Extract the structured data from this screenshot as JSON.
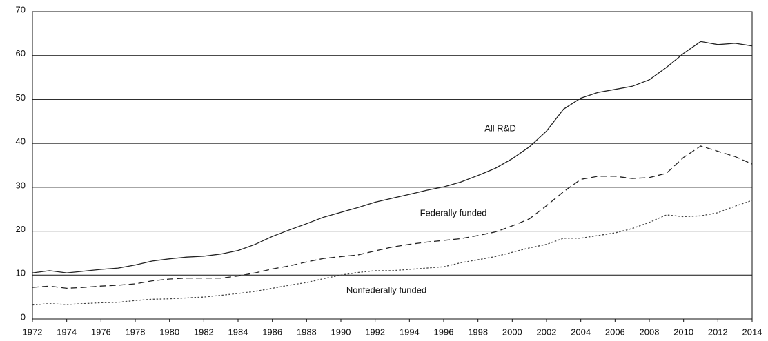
{
  "chart_data": {
    "type": "line",
    "x": [
      1972,
      1973,
      1974,
      1975,
      1976,
      1977,
      1978,
      1979,
      1980,
      1981,
      1982,
      1983,
      1984,
      1985,
      1986,
      1987,
      1988,
      1989,
      1990,
      1991,
      1992,
      1993,
      1994,
      1995,
      1996,
      1997,
      1998,
      1999,
      2000,
      2001,
      2002,
      2003,
      2004,
      2005,
      2006,
      2007,
      2008,
      2009,
      2010,
      2011,
      2012,
      2013,
      2014
    ],
    "series": [
      {
        "name": "All R&D",
        "color": "#222222",
        "style": "solid",
        "values": [
          10.5,
          11,
          10.5,
          10.9,
          11.3,
          11.6,
          12.3,
          13.2,
          13.7,
          14.1,
          14.3,
          14.8,
          15.6,
          17,
          18.8,
          20.3,
          21.7,
          23.2,
          24.3,
          25.4,
          26.6,
          27.5,
          28.4,
          29.3,
          30.1,
          31.2,
          32.7,
          34.3,
          36.5,
          39.2,
          42.8,
          47.8,
          50.3,
          51.6,
          52.3,
          53,
          54.5,
          57.3,
          60.5,
          63.2,
          62.5,
          62.8,
          62.2
        ]
      },
      {
        "name": "Federally funded",
        "color": "#222222",
        "style": "dashed",
        "values": [
          7.2,
          7.5,
          7.0,
          7.2,
          7.5,
          7.7,
          8.0,
          8.7,
          9.1,
          9.3,
          9.3,
          9.3,
          9.8,
          10.5,
          11.4,
          12.1,
          13.0,
          13.8,
          14.2,
          14.6,
          15.5,
          16.4,
          17.0,
          17.5,
          17.9,
          18.3,
          19.0,
          19.8,
          21.2,
          22.8,
          25.8,
          29.0,
          31.8,
          32.5,
          32.5,
          32.0,
          32.2,
          33.2,
          36.8,
          39.4,
          38.2,
          37.0,
          35.3
        ]
      },
      {
        "name": "Nonfederally funded",
        "color": "#444444",
        "style": "dotted",
        "values": [
          3.2,
          3.5,
          3.3,
          3.5,
          3.7,
          3.8,
          4.2,
          4.5,
          4.6,
          4.8,
          5.0,
          5.4,
          5.8,
          6.3,
          7.0,
          7.7,
          8.3,
          9.2,
          10.0,
          10.6,
          11.0,
          11.0,
          11.3,
          11.6,
          11.9,
          12.8,
          13.5,
          14.2,
          15.2,
          16.2,
          17.0,
          18.4,
          18.4,
          19.0,
          19.6,
          20.6,
          22.0,
          23.7,
          23.3,
          23.5,
          24.2,
          25.7,
          27.0
        ]
      }
    ],
    "xlim": [
      1972,
      2014
    ],
    "xticks": [
      1972,
      1974,
      1976,
      1978,
      1980,
      1982,
      1984,
      1986,
      1988,
      1990,
      1992,
      1994,
      1996,
      1998,
      2000,
      2002,
      2004,
      2006,
      2008,
      2010,
      2012,
      2014
    ],
    "ylim": [
      0,
      70
    ],
    "yticks": [
      0,
      10,
      20,
      30,
      40,
      50,
      60,
      70
    ],
    "grid": true
  }
}
